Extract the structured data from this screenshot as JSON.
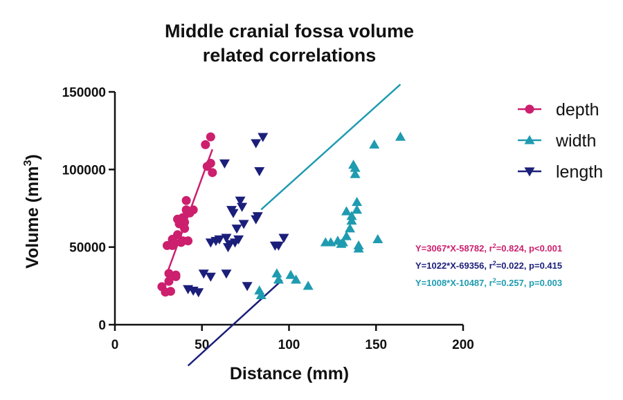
{
  "chart_data": {
    "type": "scatter",
    "title_lines": [
      "Middle cranial fossa volume",
      "related correlations"
    ],
    "xlabel": "Distance (mm)",
    "ylabel": {
      "base": "Volume (mm",
      "sup": "3",
      "close": ")"
    },
    "xlim": [
      0,
      200
    ],
    "ylim": [
      0,
      150000
    ],
    "xticks": [
      0,
      50,
      100,
      150,
      200
    ],
    "yticks": [
      0,
      50000,
      100000,
      150000
    ],
    "xtick_labels": [
      "0",
      "50",
      "100",
      "150",
      "200"
    ],
    "ytick_labels": [
      "0",
      "50000",
      "100000",
      "150000"
    ],
    "grid": false,
    "legend_position": "top-right",
    "series": [
      {
        "name": "depth",
        "marker": "circle",
        "color": "#cc1f6e",
        "points": [
          [
            27,
            24500
          ],
          [
            29,
            21000
          ],
          [
            30,
            51000
          ],
          [
            31,
            33000
          ],
          [
            31,
            28000
          ],
          [
            32,
            21500
          ],
          [
            33,
            52000
          ],
          [
            33,
            51000
          ],
          [
            33,
            55000
          ],
          [
            34,
            53000
          ],
          [
            35,
            31000
          ],
          [
            35,
            32000
          ],
          [
            36,
            68000
          ],
          [
            36,
            58000
          ],
          [
            37,
            65000
          ],
          [
            38,
            53000
          ],
          [
            39,
            54000
          ],
          [
            39,
            69000
          ],
          [
            40,
            66000
          ],
          [
            40,
            62000
          ],
          [
            41,
            80000
          ],
          [
            41,
            74000
          ],
          [
            42,
            54000
          ],
          [
            43,
            72000
          ],
          [
            45,
            74000
          ],
          [
            52,
            116000
          ],
          [
            53,
            102000
          ],
          [
            55,
            104000
          ],
          [
            55,
            121000
          ],
          [
            56,
            98000
          ]
        ],
        "fit": {
          "x_range": [
            30,
            56
          ],
          "slope": 3067,
          "intercept": -58782
        },
        "annotation": {
          "text_before": "Y=3067*X-58782, r",
          "sup": "2",
          "text_after": "=0.824, p<0.001"
        }
      },
      {
        "name": "width",
        "marker": "triangle-up",
        "color": "#1f9bb0",
        "points": [
          [
            83,
            22000
          ],
          [
            84,
            19000
          ],
          [
            93,
            33000
          ],
          [
            94,
            29000
          ],
          [
            101,
            32000
          ],
          [
            104,
            29000
          ],
          [
            111,
            25000
          ],
          [
            121,
            53000
          ],
          [
            124,
            53000
          ],
          [
            128,
            54000
          ],
          [
            130,
            52000
          ],
          [
            131,
            53000
          ],
          [
            133,
            57000
          ],
          [
            133,
            73000
          ],
          [
            135,
            62000
          ],
          [
            136,
            67000
          ],
          [
            136,
            70000
          ],
          [
            137,
            103000
          ],
          [
            138,
            97000
          ],
          [
            138,
            101000
          ],
          [
            139,
            79000
          ],
          [
            139,
            74000
          ],
          [
            140,
            51000
          ],
          [
            140,
            49000
          ],
          [
            149,
            116000
          ],
          [
            151,
            55000
          ],
          [
            164,
            121000
          ]
        ],
        "fit": {
          "x_range": [
            84,
            164
          ],
          "slope": 1008,
          "intercept": -10487
        },
        "annotation": {
          "text_before": "Y=1008*X-10487, r",
          "sup": "2",
          "text_after": "=0.257, p=0.003"
        }
      },
      {
        "name": "length",
        "marker": "triangle-down",
        "color": "#1b1f7a",
        "points": [
          [
            42,
            23000
          ],
          [
            45,
            22000
          ],
          [
            48,
            21000
          ],
          [
            51,
            33000
          ],
          [
            55,
            53000
          ],
          [
            55,
            31000
          ],
          [
            58,
            54000
          ],
          [
            60,
            55000
          ],
          [
            63,
            104000
          ],
          [
            64,
            33000
          ],
          [
            64,
            56000
          ],
          [
            65,
            50000
          ],
          [
            66,
            52000
          ],
          [
            67,
            74000
          ],
          [
            68,
            72000
          ],
          [
            69,
            53000
          ],
          [
            70,
            62000
          ],
          [
            71,
            55000
          ],
          [
            72,
            80000
          ],
          [
            73,
            76000
          ],
          [
            74,
            65000
          ],
          [
            76,
            25000
          ],
          [
            81,
            68000
          ],
          [
            81,
            117000
          ],
          [
            82,
            70000
          ],
          [
            83,
            99000
          ],
          [
            85,
            121000
          ],
          [
            92,
            51000
          ],
          [
            94,
            51000
          ],
          [
            97,
            56000
          ]
        ],
        "fit": {
          "x_range": [
            42,
            96
          ],
          "slope": 1022,
          "intercept": -69356
        },
        "annotation": {
          "text_before": "Y=1022*X-69356, r",
          "sup": "2",
          "text_after": "=0.022, p=0.415"
        }
      }
    ]
  }
}
